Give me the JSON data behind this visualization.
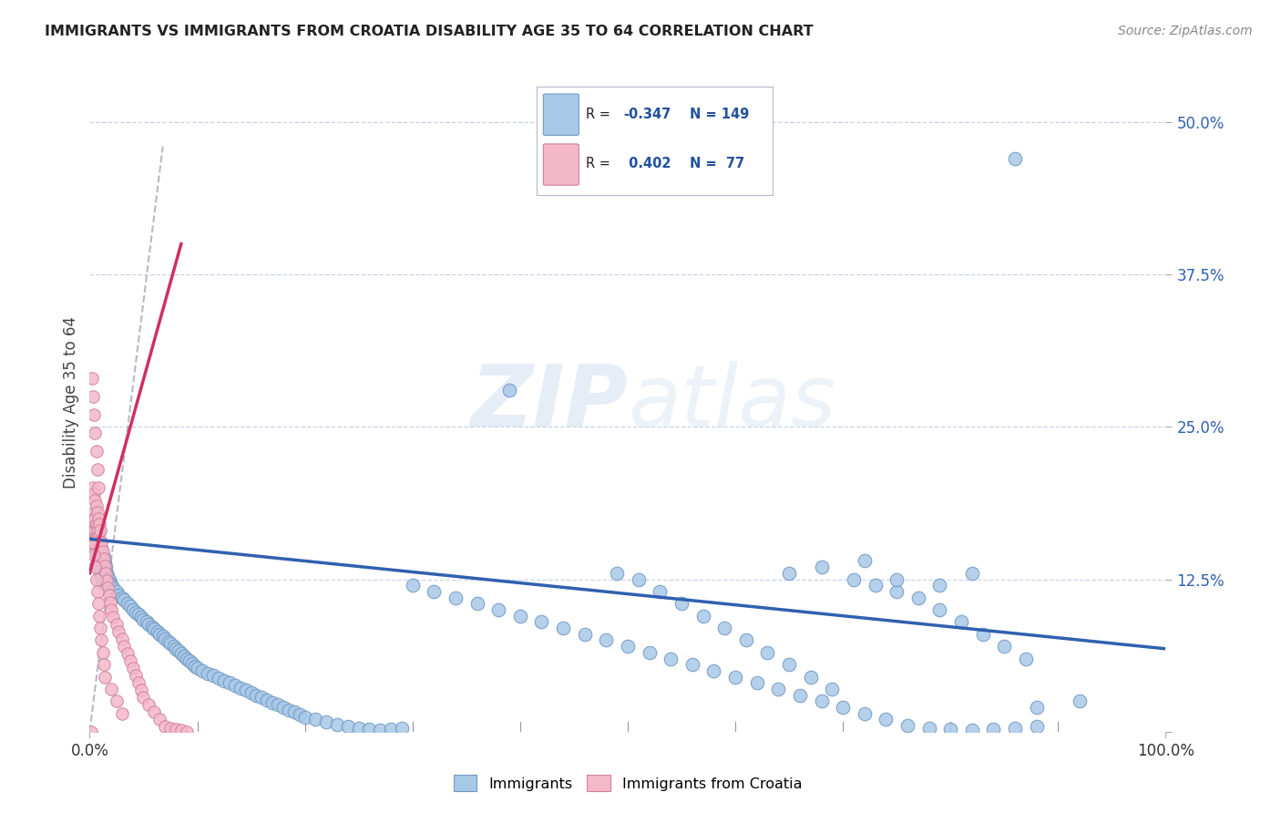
{
  "title": "IMMIGRANTS VS IMMIGRANTS FROM CROATIA DISABILITY AGE 35 TO 64 CORRELATION CHART",
  "source": "Source: ZipAtlas.com",
  "ylabel": "Disability Age 35 to 64",
  "legend_label_blue": "Immigrants",
  "legend_label_pink": "Immigrants from Croatia",
  "blue_color": "#a8c8e8",
  "pink_color": "#f4b8c8",
  "blue_edge_color": "#7098c0",
  "pink_edge_color": "#d080a0",
  "blue_line_color": "#3060b0",
  "pink_line_color": "#d03060",
  "gray_line_color": "#b8b8c8",
  "watermark_color": "#d8e4f0",
  "background_color": "#ffffff",
  "grid_color": "#c8d4e8",
  "legend_r_color": "#2050a0",
  "legend_n_color": "#2050a0",
  "blue_x": [
    0.002,
    0.003,
    0.004,
    0.005,
    0.006,
    0.007,
    0.008,
    0.009,
    0.01,
    0.011,
    0.012,
    0.013,
    0.014,
    0.015,
    0.016,
    0.017,
    0.018,
    0.019,
    0.02,
    0.022,
    0.025,
    0.027,
    0.03,
    0.032,
    0.035,
    0.038,
    0.04,
    0.043,
    0.045,
    0.048,
    0.05,
    0.053,
    0.055,
    0.058,
    0.06,
    0.063,
    0.065,
    0.068,
    0.07,
    0.073,
    0.075,
    0.078,
    0.08,
    0.083,
    0.085,
    0.088,
    0.09,
    0.093,
    0.095,
    0.098,
    0.1,
    0.105,
    0.11,
    0.115,
    0.12,
    0.125,
    0.13,
    0.135,
    0.14,
    0.145,
    0.15,
    0.155,
    0.16,
    0.165,
    0.17,
    0.175,
    0.18,
    0.185,
    0.19,
    0.195,
    0.2,
    0.21,
    0.22,
    0.23,
    0.24,
    0.25,
    0.26,
    0.27,
    0.28,
    0.29,
    0.3,
    0.32,
    0.34,
    0.36,
    0.38,
    0.4,
    0.42,
    0.44,
    0.46,
    0.48,
    0.5,
    0.52,
    0.54,
    0.56,
    0.58,
    0.6,
    0.62,
    0.64,
    0.66,
    0.68,
    0.7,
    0.72,
    0.74,
    0.76,
    0.78,
    0.8,
    0.82,
    0.84,
    0.86,
    0.88,
    0.49,
    0.51,
    0.53,
    0.55,
    0.57,
    0.59,
    0.61,
    0.63,
    0.65,
    0.67,
    0.69,
    0.71,
    0.73,
    0.75,
    0.77,
    0.79,
    0.81,
    0.83,
    0.85,
    0.87,
    0.003,
    0.004,
    0.005,
    0.006,
    0.007,
    0.008,
    0.009,
    0.01,
    0.011,
    0.012,
    0.65,
    0.68,
    0.72,
    0.75,
    0.79,
    0.82,
    0.86,
    0.39,
    0.88,
    0.92
  ],
  "blue_y": [
    0.17,
    0.155,
    0.16,
    0.15,
    0.145,
    0.14,
    0.135,
    0.165,
    0.155,
    0.15,
    0.145,
    0.142,
    0.138,
    0.135,
    0.13,
    0.128,
    0.125,
    0.122,
    0.12,
    0.118,
    0.115,
    0.112,
    0.11,
    0.108,
    0.105,
    0.103,
    0.1,
    0.098,
    0.096,
    0.094,
    0.092,
    0.09,
    0.088,
    0.086,
    0.084,
    0.082,
    0.08,
    0.078,
    0.076,
    0.074,
    0.072,
    0.07,
    0.068,
    0.066,
    0.064,
    0.062,
    0.06,
    0.058,
    0.056,
    0.054,
    0.052,
    0.05,
    0.048,
    0.046,
    0.044,
    0.042,
    0.04,
    0.038,
    0.036,
    0.034,
    0.032,
    0.03,
    0.028,
    0.026,
    0.024,
    0.022,
    0.02,
    0.018,
    0.016,
    0.014,
    0.012,
    0.01,
    0.008,
    0.006,
    0.004,
    0.003,
    0.002,
    0.001,
    0.002,
    0.003,
    0.12,
    0.115,
    0.11,
    0.105,
    0.1,
    0.095,
    0.09,
    0.085,
    0.08,
    0.075,
    0.07,
    0.065,
    0.06,
    0.055,
    0.05,
    0.045,
    0.04,
    0.035,
    0.03,
    0.025,
    0.02,
    0.015,
    0.01,
    0.005,
    0.003,
    0.002,
    0.001,
    0.002,
    0.003,
    0.004,
    0.13,
    0.125,
    0.115,
    0.105,
    0.095,
    0.085,
    0.075,
    0.065,
    0.055,
    0.045,
    0.035,
    0.125,
    0.12,
    0.115,
    0.11,
    0.1,
    0.09,
    0.08,
    0.07,
    0.06,
    0.175,
    0.168,
    0.16,
    0.153,
    0.147,
    0.141,
    0.136,
    0.131,
    0.126,
    0.122,
    0.13,
    0.135,
    0.14,
    0.125,
    0.12,
    0.13,
    0.47,
    0.28,
    0.02,
    0.025
  ],
  "pink_x": [
    0.001,
    0.002,
    0.002,
    0.003,
    0.003,
    0.003,
    0.004,
    0.004,
    0.004,
    0.005,
    0.005,
    0.005,
    0.006,
    0.006,
    0.006,
    0.007,
    0.007,
    0.007,
    0.008,
    0.008,
    0.009,
    0.009,
    0.01,
    0.01,
    0.01,
    0.011,
    0.012,
    0.013,
    0.014,
    0.015,
    0.016,
    0.017,
    0.018,
    0.019,
    0.02,
    0.022,
    0.025,
    0.027,
    0.03,
    0.032,
    0.035,
    0.038,
    0.04,
    0.043,
    0.045,
    0.048,
    0.05,
    0.055,
    0.06,
    0.065,
    0.07,
    0.075,
    0.08,
    0.085,
    0.09,
    0.002,
    0.003,
    0.004,
    0.005,
    0.006,
    0.007,
    0.008,
    0.003,
    0.004,
    0.005,
    0.006,
    0.007,
    0.008,
    0.009,
    0.01,
    0.011,
    0.012,
    0.013,
    0.014,
    0.02,
    0.025,
    0.03
  ],
  "pink_y": [
    0.0,
    0.17,
    0.155,
    0.2,
    0.175,
    0.165,
    0.195,
    0.18,
    0.165,
    0.19,
    0.175,
    0.165,
    0.185,
    0.17,
    0.16,
    0.18,
    0.165,
    0.155,
    0.175,
    0.16,
    0.17,
    0.155,
    0.165,
    0.15,
    0.14,
    0.155,
    0.148,
    0.142,
    0.136,
    0.13,
    0.124,
    0.118,
    0.112,
    0.106,
    0.1,
    0.094,
    0.088,
    0.082,
    0.076,
    0.07,
    0.064,
    0.058,
    0.052,
    0.046,
    0.04,
    0.034,
    0.028,
    0.022,
    0.016,
    0.01,
    0.004,
    0.003,
    0.002,
    0.001,
    0.0,
    0.29,
    0.275,
    0.26,
    0.245,
    0.23,
    0.215,
    0.2,
    0.155,
    0.145,
    0.135,
    0.125,
    0.115,
    0.105,
    0.095,
    0.085,
    0.075,
    0.065,
    0.055,
    0.045,
    0.035,
    0.025,
    0.015
  ],
  "blue_trend_x": [
    0.0,
    1.0
  ],
  "blue_trend_y": [
    0.158,
    0.068
  ],
  "pink_trend_x": [
    0.0,
    0.085
  ],
  "pink_trend_y": [
    0.13,
    0.4
  ],
  "gray_trend_x": [
    0.0,
    0.068
  ],
  "gray_trend_y": [
    0.0,
    0.48
  ],
  "yticks": [
    0.0,
    0.125,
    0.25,
    0.375,
    0.5
  ],
  "ytick_labels": [
    "",
    "12.5%",
    "25.0%",
    "37.5%",
    "50.0%"
  ],
  "xlim": [
    0.0,
    1.0
  ],
  "ylim": [
    0.0,
    0.54
  ]
}
